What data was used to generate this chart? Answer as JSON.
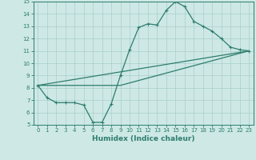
{
  "xlabel": "Humidex (Indice chaleur)",
  "ylabel": "",
  "xlim": [
    -0.5,
    23.5
  ],
  "ylim": [
    5,
    15
  ],
  "xticks": [
    0,
    1,
    2,
    3,
    4,
    5,
    6,
    7,
    8,
    9,
    10,
    11,
    12,
    13,
    14,
    15,
    16,
    17,
    18,
    19,
    20,
    21,
    22,
    23
  ],
  "yticks": [
    5,
    6,
    7,
    8,
    9,
    10,
    11,
    12,
    13,
    14,
    15
  ],
  "bg_color": "#cde8e5",
  "grid_color": "#aacfcc",
  "line_color": "#2e7d6e",
  "line1_x": [
    0,
    1,
    2,
    3,
    4,
    5,
    6,
    7,
    8,
    9,
    10,
    11,
    12,
    13,
    14,
    15,
    16,
    17,
    18,
    19,
    20,
    21,
    22,
    23
  ],
  "line1_y": [
    8.2,
    7.2,
    6.8,
    6.8,
    6.8,
    6.6,
    5.2,
    5.2,
    6.7,
    9.0,
    11.1,
    12.9,
    13.2,
    13.1,
    14.3,
    15.0,
    14.6,
    13.4,
    13.0,
    12.6,
    12.0,
    11.3,
    11.1,
    11.0
  ],
  "line2_x": [
    0,
    23
  ],
  "line2_y": [
    8.2,
    11.0
  ],
  "line3_x": [
    0,
    9,
    23
  ],
  "line3_y": [
    8.2,
    8.2,
    11.0
  ]
}
